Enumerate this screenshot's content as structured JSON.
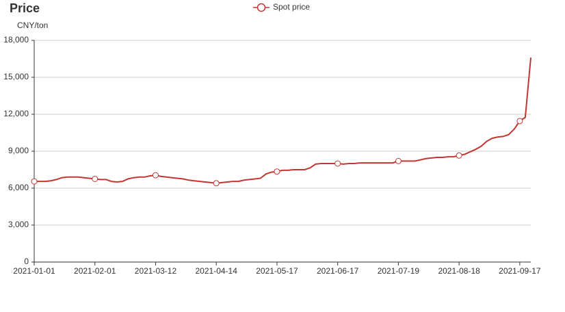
{
  "chart_data": {
    "type": "line",
    "title": "Price",
    "y_axis_label": "CNY/ton",
    "categories": [
      "2021-01-01",
      null,
      null,
      null,
      null,
      null,
      null,
      null,
      null,
      null,
      null,
      "2021-02-01",
      null,
      null,
      null,
      null,
      null,
      null,
      null,
      null,
      null,
      null,
      "2021-03-12",
      null,
      null,
      null,
      null,
      null,
      null,
      null,
      null,
      null,
      null,
      "2021-04-14",
      null,
      null,
      null,
      null,
      null,
      null,
      null,
      null,
      null,
      null,
      "2021-05-17",
      null,
      null,
      null,
      null,
      null,
      null,
      null,
      null,
      null,
      null,
      "2021-06-17",
      null,
      null,
      null,
      null,
      null,
      null,
      null,
      null,
      null,
      null,
      "2021-07-19",
      null,
      null,
      null,
      null,
      null,
      null,
      null,
      null,
      null,
      null,
      "2021-08-18",
      null,
      null,
      null,
      null,
      null,
      null,
      null,
      null,
      null,
      null,
      "2021-09-17",
      null,
      null
    ],
    "series": [
      {
        "name": "Spot price",
        "color": "#c23531",
        "values": [
          6550,
          6550,
          6550,
          6600,
          6700,
          6850,
          6900,
          6900,
          6900,
          6850,
          6800,
          6750,
          6700,
          6700,
          6550,
          6500,
          6550,
          6750,
          6850,
          6900,
          6900,
          7000,
          7050,
          6950,
          6900,
          6850,
          6800,
          6750,
          6650,
          6600,
          6550,
          6500,
          6450,
          6400,
          6450,
          6500,
          6550,
          6550,
          6650,
          6700,
          6750,
          6800,
          7150,
          7300,
          7350,
          7450,
          7450,
          7500,
          7500,
          7500,
          7650,
          7950,
          8000,
          8000,
          8000,
          8000,
          7950,
          8000,
          8000,
          8050,
          8050,
          8050,
          8050,
          8050,
          8050,
          8050,
          8200,
          8200,
          8200,
          8200,
          8300,
          8400,
          8450,
          8500,
          8500,
          8550,
          8550,
          8650,
          8750,
          8950,
          9150,
          9400,
          9800,
          10050,
          10150,
          10200,
          10350,
          10800,
          11450,
          11750,
          16600
        ]
      }
    ],
    "ylim": [
      0,
      18000
    ],
    "yticks": [
      0,
      {
        "value": 3000,
        "label": "3,000"
      },
      {
        "value": 6000,
        "label": "6,000"
      },
      {
        "value": 9000,
        "label": "9,000"
      },
      {
        "value": 12000,
        "label": "12,000"
      },
      {
        "value": 15000,
        "label": "15,000"
      },
      {
        "value": 18000,
        "label": "18,000"
      }
    ],
    "grid": true
  }
}
